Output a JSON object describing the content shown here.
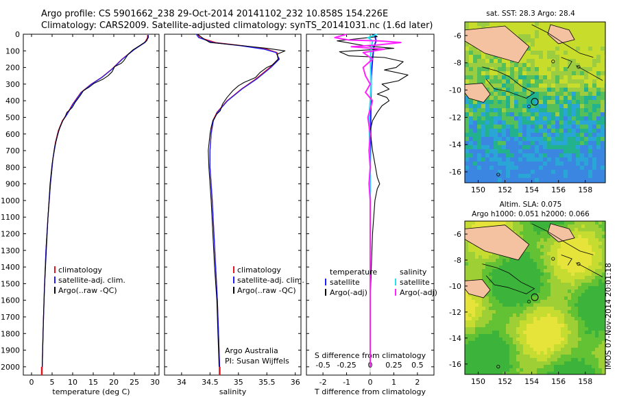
{
  "header": {
    "line1": "Argo profile: CS 5901662_238 29-Oct-2014 20141102_232 10.858S 154.226E",
    "line2": "Climatology: CARS2009. Satellite-adjusted climatology: synTS_20141031.nc (1.6d later)"
  },
  "depth_axis": {
    "ylim": [
      0,
      2050
    ],
    "ticks": [
      0,
      100,
      200,
      300,
      400,
      500,
      600,
      700,
      800,
      900,
      1000,
      1100,
      1200,
      1300,
      1400,
      1500,
      1600,
      1700,
      1800,
      1900,
      2000
    ]
  },
  "colors": {
    "climatology": "#e0161c",
    "satellite": "#1c1cff",
    "argo": "#000000",
    "sal_satellite": "#22e0ee",
    "sal_argo": "#ff22ff"
  },
  "chart_data": [
    {
      "type": "line",
      "id": "temperature",
      "xlabel": "temperature (deg C)",
      "xlim": [
        -2,
        31
      ],
      "xticks": [
        0,
        5,
        10,
        15,
        20,
        25,
        30
      ],
      "legend": [
        "climatology",
        "satellite-adj. clim.",
        "Argo(..raw -QC)"
      ],
      "series": [
        {
          "name": "climatology",
          "points": [
            [
              28.2,
              5
            ],
            [
              28.2,
              20
            ],
            [
              27.5,
              50
            ],
            [
              25,
              90
            ],
            [
              22,
              150
            ],
            [
              19.5,
              210
            ],
            [
              17,
              260
            ],
            [
              14.5,
              300
            ],
            [
              12,
              350
            ],
            [
              10,
              420
            ],
            [
              8.6,
              480
            ],
            [
              7.5,
              520
            ],
            [
              6.5,
              580
            ],
            [
              5.8,
              650
            ],
            [
              5.2,
              750
            ],
            [
              4.6,
              900
            ],
            [
              4.0,
              1100
            ],
            [
              3.5,
              1300
            ],
            [
              3.1,
              1550
            ],
            [
              2.8,
              1800
            ],
            [
              2.6,
              2000
            ],
            [
              2.5,
              2040
            ]
          ]
        },
        {
          "name": "satellite-adj. clim.",
          "points": [
            [
              28.4,
              5
            ],
            [
              28.4,
              20
            ],
            [
              27.6,
              50
            ],
            [
              25.1,
              90
            ],
            [
              22.1,
              150
            ],
            [
              19.6,
              210
            ],
            [
              17.1,
              260
            ],
            [
              14.6,
              300
            ],
            [
              12.1,
              350
            ],
            [
              10.1,
              420
            ],
            [
              8.7,
              480
            ],
            [
              7.6,
              520
            ],
            [
              6.6,
              580
            ],
            [
              5.9,
              650
            ],
            [
              5.2,
              750
            ],
            [
              4.6,
              900
            ],
            [
              4.0,
              1100
            ],
            [
              3.5,
              1300
            ],
            [
              3.1,
              1550
            ],
            [
              2.8,
              1800
            ],
            [
              2.6,
              2000
            ],
            [
              2.5,
              2035
            ]
          ]
        },
        {
          "name": "Argo(..raw -QC)",
          "points": [
            [
              28.3,
              5
            ],
            [
              28.3,
              20
            ],
            [
              28,
              40
            ],
            [
              26.5,
              65
            ],
            [
              24.6,
              95
            ],
            [
              23.5,
              120
            ],
            [
              22.4,
              160
            ],
            [
              21.8,
              175
            ],
            [
              20.2,
              195
            ],
            [
              19.6,
              225
            ],
            [
              18.6,
              250
            ],
            [
              17.4,
              270
            ],
            [
              15.2,
              295
            ],
            [
              14.2,
              315
            ],
            [
              12.6,
              340
            ],
            [
              11.8,
              370
            ],
            [
              10.6,
              410
            ],
            [
              9.9,
              440
            ],
            [
              9.3,
              455
            ],
            [
              8.6,
              470
            ],
            [
              8.1,
              500
            ],
            [
              7.6,
              520
            ],
            [
              6.9,
              560
            ],
            [
              6.3,
              610
            ],
            [
              5.6,
              680
            ],
            [
              5.0,
              780
            ],
            [
              4.5,
              900
            ],
            [
              4.0,
              1100
            ],
            [
              3.6,
              1300
            ],
            [
              3.2,
              1500
            ],
            [
              2.9,
              1700
            ],
            [
              2.7,
              1900
            ],
            [
              2.6,
              2000
            ]
          ]
        }
      ]
    },
    {
      "type": "line",
      "id": "salinity",
      "xlabel": "salinity",
      "xlim": [
        33.7,
        36.1
      ],
      "xticks": [
        34,
        34.5,
        35,
        35.5,
        36
      ],
      "legend": [
        "climatology",
        "satellite-adj. clim.",
        "Argo(..raw -QC)"
      ],
      "annotation": [
        "Argo Australia",
        "PI: Susan Wijffels"
      ],
      "series": [
        {
          "name": "climatology",
          "points": [
            [
              34.28,
              0
            ],
            [
              34.32,
              20
            ],
            [
              34.6,
              50
            ],
            [
              35.1,
              70
            ],
            [
              35.5,
              90
            ],
            [
              35.68,
              110
            ],
            [
              35.7,
              150
            ],
            [
              35.55,
              200
            ],
            [
              35.3,
              270
            ],
            [
              35.05,
              330
            ],
            [
              34.8,
              400
            ],
            [
              34.62,
              470
            ],
            [
              34.55,
              520
            ],
            [
              34.52,
              600
            ],
            [
              34.5,
              700
            ],
            [
              34.5,
              800
            ],
            [
              34.52,
              900
            ],
            [
              34.54,
              1000
            ],
            [
              34.57,
              1200
            ],
            [
              34.6,
              1400
            ],
            [
              34.63,
              1600
            ],
            [
              34.65,
              1800
            ],
            [
              34.67,
              2000
            ],
            [
              34.67,
              2040
            ]
          ]
        },
        {
          "name": "satellite-adj. clim.",
          "points": [
            [
              34.26,
              0
            ],
            [
              34.3,
              20
            ],
            [
              34.55,
              50
            ],
            [
              35.05,
              70
            ],
            [
              35.45,
              90
            ],
            [
              35.66,
              110
            ],
            [
              35.72,
              150
            ],
            [
              35.57,
              200
            ],
            [
              35.32,
              270
            ],
            [
              35.06,
              330
            ],
            [
              34.81,
              400
            ],
            [
              34.63,
              470
            ],
            [
              34.56,
              520
            ],
            [
              34.52,
              600
            ],
            [
              34.5,
              700
            ],
            [
              34.5,
              800
            ],
            [
              34.52,
              900
            ],
            [
              34.54,
              1000
            ],
            [
              34.57,
              1200
            ],
            [
              34.6,
              1400
            ],
            [
              34.63,
              1600
            ],
            [
              34.65,
              1800
            ],
            [
              34.67,
              2000
            ]
          ]
        },
        {
          "name": "Argo(..raw -QC)",
          "points": [
            [
              34.28,
              0
            ],
            [
              34.4,
              30
            ],
            [
              34.5,
              50
            ],
            [
              35.1,
              70
            ],
            [
              35.5,
              85
            ],
            [
              35.82,
              100
            ],
            [
              35.68,
              120
            ],
            [
              35.7,
              150
            ],
            [
              35.6,
              185
            ],
            [
              35.5,
              200
            ],
            [
              35.38,
              230
            ],
            [
              35.3,
              260
            ],
            [
              35.1,
              290
            ],
            [
              35.0,
              310
            ],
            [
              34.9,
              340
            ],
            [
              34.8,
              380
            ],
            [
              34.72,
              420
            ],
            [
              34.68,
              460
            ],
            [
              34.62,
              480
            ],
            [
              34.55,
              520
            ],
            [
              34.52,
              560
            ],
            [
              34.5,
              600
            ],
            [
              34.47,
              700
            ],
            [
              34.48,
              800
            ],
            [
              34.5,
              900
            ],
            [
              34.52,
              1000
            ],
            [
              34.55,
              1200
            ],
            [
              34.58,
              1400
            ],
            [
              34.62,
              1600
            ],
            [
              34.64,
              1800
            ],
            [
              34.66,
              2000
            ]
          ]
        }
      ]
    },
    {
      "type": "line",
      "id": "difference",
      "xlabel_bottom": "T difference from climatology",
      "xlabel_top": "S difference from climatology",
      "xlim": [
        -2.7,
        2.7
      ],
      "xticks_bottom": [
        -2,
        -1,
        0,
        1,
        2
      ],
      "xticks_top": [
        -0.5,
        -0.25,
        0,
        0.25,
        0.5
      ],
      "legend_left_title": "temperature",
      "legend_right_title": "salinity",
      "legend": [
        "satellite",
        "Argo(-adj)",
        "satellite",
        "Argo(-adj)"
      ],
      "series": [
        {
          "name": "T satellite",
          "points": [
            [
              0.1,
              0
            ],
            [
              0.2,
              10
            ],
            [
              0.25,
              40
            ],
            [
              0.15,
              80
            ],
            [
              0.1,
              150
            ],
            [
              0.05,
              250
            ],
            [
              0.03,
              400
            ],
            [
              0.02,
              600
            ],
            [
              0.0,
              800
            ],
            [
              0.0,
              1200
            ],
            [
              0.0,
              1600
            ],
            [
              0.0,
              2000
            ]
          ]
        },
        {
          "name": "T Argo(-adj)",
          "points": [
            [
              0.1,
              0
            ],
            [
              0.3,
              15
            ],
            [
              -1.4,
              40
            ],
            [
              -0.2,
              70
            ],
            [
              1.0,
              85
            ],
            [
              -1.3,
              105
            ],
            [
              -0.9,
              130
            ],
            [
              0.6,
              140
            ],
            [
              1.4,
              165
            ],
            [
              1.1,
              200
            ],
            [
              0.6,
              215
            ],
            [
              1.6,
              245
            ],
            [
              1.2,
              280
            ],
            [
              0.5,
              300
            ],
            [
              0.8,
              330
            ],
            [
              0.3,
              360
            ],
            [
              0.7,
              380
            ],
            [
              0.8,
              400
            ],
            [
              0.5,
              430
            ],
            [
              0.3,
              470
            ],
            [
              0.1,
              520
            ],
            [
              0.0,
              580
            ],
            [
              0.1,
              700
            ],
            [
              0.2,
              780
            ],
            [
              0.3,
              860
            ],
            [
              0.4,
              900
            ],
            [
              0.3,
              930
            ],
            [
              0.2,
              1000
            ],
            [
              0.1,
              1200
            ],
            [
              0.05,
              1400
            ],
            [
              0.0,
              1600
            ],
            [
              0.0,
              2000
            ]
          ]
        },
        {
          "name": "S satellite",
          "points": [
            [
              0.3,
              0
            ],
            [
              -0.1,
              20
            ],
            [
              0.1,
              40
            ],
            [
              0.05,
              80
            ],
            [
              0.0,
              150
            ],
            [
              0.05,
              300
            ],
            [
              -0.05,
              500
            ],
            [
              0.0,
              800
            ],
            [
              0.0,
              1200
            ],
            [
              0.0,
              1600
            ],
            [
              0.0,
              2000
            ]
          ]
        },
        {
          "name": "S Argo(-adj)",
          "points": [
            [
              -1.0,
              0
            ],
            [
              -1.5,
              20
            ],
            [
              -0.9,
              35
            ],
            [
              0.4,
              40
            ],
            [
              1.3,
              50
            ],
            [
              0.3,
              65
            ],
            [
              -0.8,
              75
            ],
            [
              0.6,
              90
            ],
            [
              -0.3,
              110
            ],
            [
              0.1,
              150
            ],
            [
              -0.3,
              200
            ],
            [
              -0.2,
              250
            ],
            [
              0.0,
              300
            ],
            [
              -0.2,
              350
            ],
            [
              0.1,
              400
            ],
            [
              -0.1,
              500
            ],
            [
              0.0,
              600
            ],
            [
              -0.05,
              700
            ],
            [
              0.0,
              800
            ],
            [
              -0.05,
              900
            ],
            [
              0.0,
              1000
            ],
            [
              0.0,
              1200
            ],
            [
              0.0,
              1500
            ],
            [
              0.0,
              1800
            ],
            [
              0.0,
              2000
            ]
          ]
        }
      ]
    },
    {
      "type": "heatmap",
      "id": "sst_map",
      "title": "sat. SST: 28.3 Argo: 28.4",
      "xlim": [
        149,
        159.5
      ],
      "ylim": [
        -16.8,
        -5
      ],
      "xticks": [
        150,
        152,
        154,
        156,
        158
      ],
      "yticks": [
        -6,
        -8,
        -10,
        -12,
        -14,
        -16
      ],
      "marker": [
        154.226,
        -10.858
      ]
    },
    {
      "type": "heatmap",
      "id": "sla_map",
      "title": [
        "Altim. SLA: 0.075",
        "Argo h1000: 0.051 h2000: 0.066"
      ],
      "xlim": [
        149,
        159.5
      ],
      "ylim": [
        -16.8,
        -5
      ],
      "xticks": [
        150,
        152,
        154,
        156,
        158
      ],
      "yticks": [
        -6,
        -8,
        -10,
        -12,
        -14,
        -16
      ],
      "marker": [
        154.226,
        -10.858
      ]
    }
  ],
  "credit": "IMOS 07-Nov-2014 20:01:18"
}
